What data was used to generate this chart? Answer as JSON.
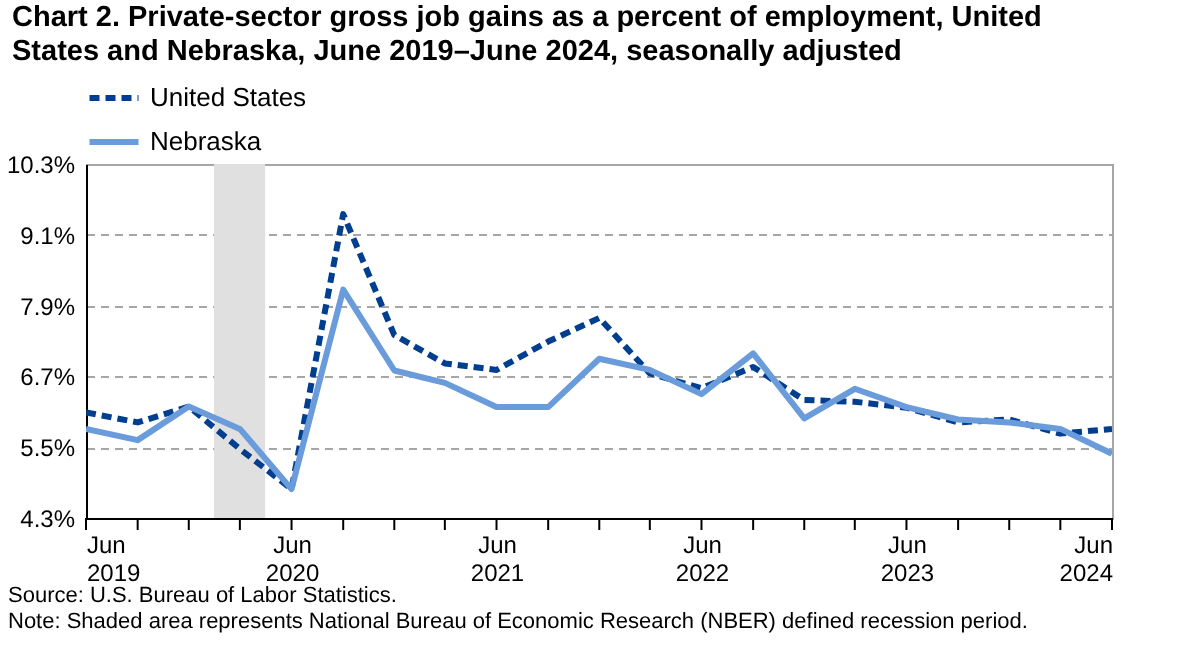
{
  "chart_data": {
    "type": "line",
    "title": "Chart 2. Private-sector gross job gains as a percent of employment, United States and Nebraska, June 2019–June 2024, seasonally adjusted",
    "x": [
      "2019-06",
      "2019-09",
      "2019-12",
      "2020-03",
      "2020-06",
      "2020-09",
      "2020-12",
      "2021-03",
      "2021-06",
      "2021-09",
      "2021-12",
      "2022-03",
      "2022-06",
      "2022-09",
      "2022-12",
      "2023-03",
      "2023-06",
      "2023-09",
      "2023-12",
      "2024-03",
      "2024-06"
    ],
    "series": [
      {
        "name": "United States",
        "color": "#003e8f",
        "line_style": "dashed",
        "values": [
          6.09,
          5.92,
          6.19,
          5.47,
          4.79,
          9.45,
          7.4,
          6.92,
          6.81,
          7.29,
          7.69,
          6.75,
          6.5,
          6.86,
          6.3,
          6.27,
          6.17,
          5.92,
          5.97,
          5.73,
          5.81
        ]
      },
      {
        "name": "Nebraska",
        "color": "#6a9bdb",
        "line_style": "solid",
        "values": [
          5.81,
          5.62,
          6.19,
          5.81,
          4.79,
          8.17,
          6.8,
          6.59,
          6.18,
          6.18,
          7.0,
          6.81,
          6.4,
          7.09,
          5.99,
          6.49,
          6.18,
          5.97,
          5.92,
          5.81,
          5.39
        ]
      }
    ],
    "xlim": [
      "2019-06",
      "2024-06"
    ],
    "xticks": [
      {
        "value": "2019-06",
        "label": "Jun 2019"
      },
      {
        "value": "2019-09",
        "label": null
      },
      {
        "value": "2019-12",
        "label": null
      },
      {
        "value": "2020-03",
        "label": null
      },
      {
        "value": "2020-06",
        "label": "Jun 2020"
      },
      {
        "value": "2020-09",
        "label": null
      },
      {
        "value": "2020-12",
        "label": null
      },
      {
        "value": "2021-03",
        "label": null
      },
      {
        "value": "2021-06",
        "label": "Jun 2021"
      },
      {
        "value": "2021-09",
        "label": null
      },
      {
        "value": "2021-12",
        "label": null
      },
      {
        "value": "2022-03",
        "label": null
      },
      {
        "value": "2022-06",
        "label": "Jun 2022"
      },
      {
        "value": "2022-09",
        "label": null
      },
      {
        "value": "2022-12",
        "label": null
      },
      {
        "value": "2023-03",
        "label": null
      },
      {
        "value": "2023-06",
        "label": "Jun 2023"
      },
      {
        "value": "2023-09",
        "label": null
      },
      {
        "value": "2023-12",
        "label": null
      },
      {
        "value": "2024-03",
        "label": null
      },
      {
        "value": "2024-06",
        "label": "Jun 2024"
      }
    ],
    "ylim": [
      4.3,
      10.3
    ],
    "yticks": [
      {
        "value": 4.3,
        "label": "4.3%"
      },
      {
        "value": 5.5,
        "label": "5.5%"
      },
      {
        "value": 6.7,
        "label": "6.7%"
      },
      {
        "value": 7.9,
        "label": "7.9%"
      },
      {
        "value": 9.1,
        "label": "9.1%"
      },
      {
        "value": 10.3,
        "label": "10.3%"
      }
    ],
    "grid": "y",
    "legend": "top",
    "bands": [
      {
        "axis": "x",
        "from": "2020-01-15",
        "to": "2020-04-15",
        "color": "#e0e0e0"
      }
    ],
    "annotations": [
      "Source: U.S. Bureau of Labor Statistics.",
      "Note: Shaded area represents National Bureau of Economic Research (NBER) defined recession period."
    ]
  }
}
